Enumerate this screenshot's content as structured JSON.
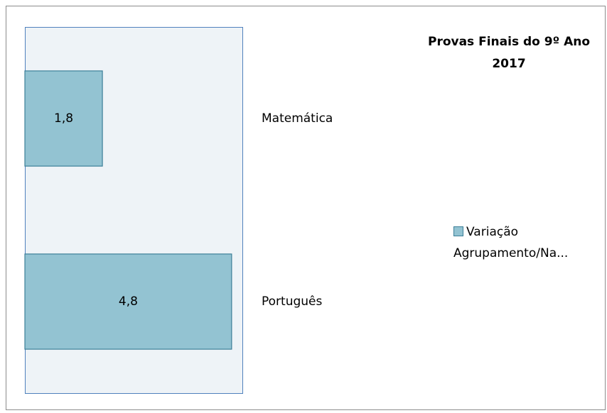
{
  "chart_data": {
    "type": "hbar",
    "title": "Provas Finais do 9º Ano 2017",
    "categories": [
      "Matemática",
      "Português"
    ],
    "series": [
      {
        "name": "Variação Agrupamento/Na...",
        "color": "#93c3d2",
        "values": [
          1.8,
          4.8
        ],
        "value_labels": [
          "1,8",
          "4,8"
        ]
      }
    ],
    "xlim": [
      0,
      5.05
    ]
  }
}
